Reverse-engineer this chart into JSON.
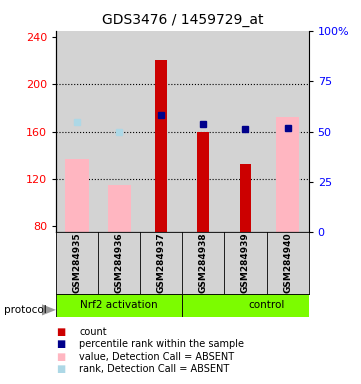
{
  "title": "GDS3476 / 1459729_at",
  "samples": [
    "GSM284935",
    "GSM284936",
    "GSM284937",
    "GSM284938",
    "GSM284939",
    "GSM284940"
  ],
  "ylim_left": [
    75,
    245
  ],
  "ylim_right": [
    0,
    100
  ],
  "yticks_left": [
    80,
    120,
    160,
    200,
    240
  ],
  "yticks_right": [
    0,
    25,
    50,
    75,
    100
  ],
  "ytick_labels_right": [
    "0",
    "25",
    "50",
    "75",
    "100%"
  ],
  "red_bars": [
    null,
    null,
    220,
    160,
    133,
    null
  ],
  "pink_bars": [
    137,
    115,
    null,
    null,
    null,
    172
  ],
  "blue_squares": [
    null,
    null,
    174,
    166,
    162,
    163
  ],
  "light_blue_squares": [
    168,
    160,
    null,
    null,
    null,
    163
  ],
  "hgrid_lines": [
    120,
    160,
    200
  ],
  "bar_bottom": 75,
  "pink_bar_width": 0.55,
  "red_bar_width": 0.28,
  "bg_color": "#d3d3d3",
  "green_color": "#7CFC00",
  "legend_colors": [
    "#CC0000",
    "#00008B",
    "#FFB6C1",
    "#ADD8E6"
  ],
  "legend_labels": [
    "count",
    "percentile rank within the sample",
    "value, Detection Call = ABSENT",
    "rank, Detection Call = ABSENT"
  ],
  "group_labels": [
    "Nrf2 activation",
    "control"
  ],
  "group_split": 2.5,
  "protocol_label": "protocol"
}
